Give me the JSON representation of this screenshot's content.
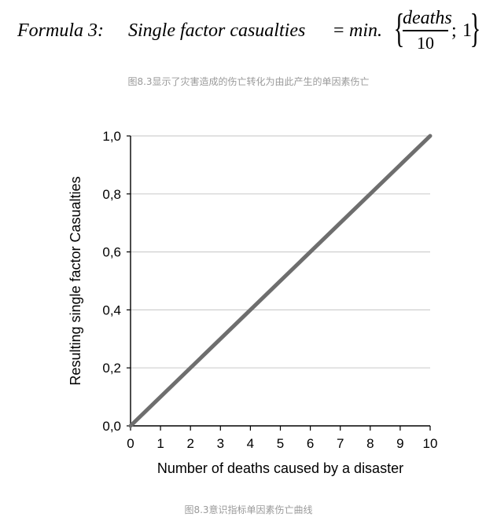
{
  "formula": {
    "label": "Formula 3:",
    "lhs": "Single factor casualties",
    "eq": "=",
    "fn": "min.",
    "numerator": "deaths",
    "denominator": "10",
    "semicolon": ";",
    "one": "1"
  },
  "captions": {
    "top": "图8.3显示了灾害造成的伤亡转化为由此产生的单因素伤亡",
    "bottom": "图8.3意识指标单因素伤亡曲线"
  },
  "colors": {
    "line": "#6e6e6e",
    "grid": "#cfcfcf",
    "axis": "#000000",
    "caption": "#9a9a9a"
  },
  "chart_data": {
    "type": "line",
    "title": "",
    "xlabel": "Number of deaths caused by a disaster",
    "ylabel": "Resulting single factor Casualties",
    "xlim": [
      0,
      10
    ],
    "ylim": [
      0,
      1
    ],
    "x_ticks": [
      "0",
      "1",
      "2",
      "3",
      "4",
      "5",
      "6",
      "7",
      "8",
      "9",
      "10"
    ],
    "y_ticks": [
      "0,0",
      "0,2",
      "0,4",
      "0,6",
      "0,8",
      "1,0"
    ],
    "grid": "horizontal",
    "series": [
      {
        "name": "single factor casualties",
        "x": [
          0,
          10
        ],
        "y": [
          0,
          1
        ]
      }
    ]
  }
}
